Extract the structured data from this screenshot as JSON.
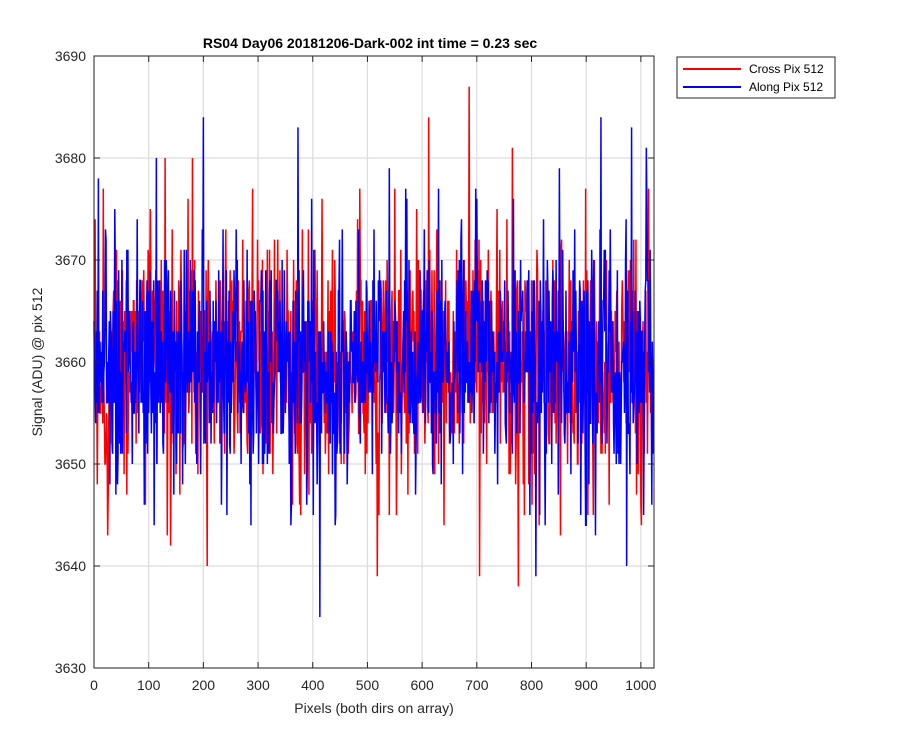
{
  "chart_data": {
    "type": "line",
    "title": "RS04 Day06 20181206-Dark-002 int time = 0.23 sec",
    "xlabel": "Pixels (both dirs on array)",
    "ylabel": "Signal (ADU) @ pix 512",
    "xlim": [
      0,
      1024
    ],
    "ylim": [
      3630,
      3690
    ],
    "xticks": [
      0,
      100,
      200,
      300,
      400,
      500,
      600,
      700,
      800,
      900,
      1000
    ],
    "yticks": [
      3630,
      3640,
      3650,
      3660,
      3670,
      3680,
      3690
    ],
    "grid": true,
    "legend_position": "outside-top-right",
    "noise_model": {
      "n_points": 1024,
      "typical_mean": 3660,
      "typical_sd": 6
    },
    "series": [
      {
        "name": "Cross Pix 512",
        "color": "#ff0000",
        "extremes": [
          {
            "x": 2,
            "y": 3674
          },
          {
            "x": 6,
            "y": 3648
          },
          {
            "x": 25,
            "y": 3643
          },
          {
            "x": 130,
            "y": 3680
          },
          {
            "x": 134,
            "y": 3643
          },
          {
            "x": 140,
            "y": 3642
          },
          {
            "x": 180,
            "y": 3680
          },
          {
            "x": 207,
            "y": 3640
          },
          {
            "x": 518,
            "y": 3639
          },
          {
            "x": 612,
            "y": 3684
          },
          {
            "x": 640,
            "y": 3644
          },
          {
            "x": 686,
            "y": 3687
          },
          {
            "x": 705,
            "y": 3639
          },
          {
            "x": 765,
            "y": 3681
          },
          {
            "x": 776,
            "y": 3638
          },
          {
            "x": 853,
            "y": 3643
          },
          {
            "x": 942,
            "y": 3646
          }
        ]
      },
      {
        "name": "Along Pix 512",
        "color": "#0000ff",
        "extremes": [
          {
            "x": 8,
            "y": 3678
          },
          {
            "x": 114,
            "y": 3680
          },
          {
            "x": 200,
            "y": 3684
          },
          {
            "x": 373,
            "y": 3683
          },
          {
            "x": 413,
            "y": 3635
          },
          {
            "x": 540,
            "y": 3679
          },
          {
            "x": 808,
            "y": 3639
          },
          {
            "x": 851,
            "y": 3679
          },
          {
            "x": 917,
            "y": 3643
          },
          {
            "x": 927,
            "y": 3684
          },
          {
            "x": 974,
            "y": 3640
          },
          {
            "x": 983,
            "y": 3683
          },
          {
            "x": 1010,
            "y": 3681
          },
          {
            "x": 1020,
            "y": 3646
          }
        ]
      }
    ]
  }
}
